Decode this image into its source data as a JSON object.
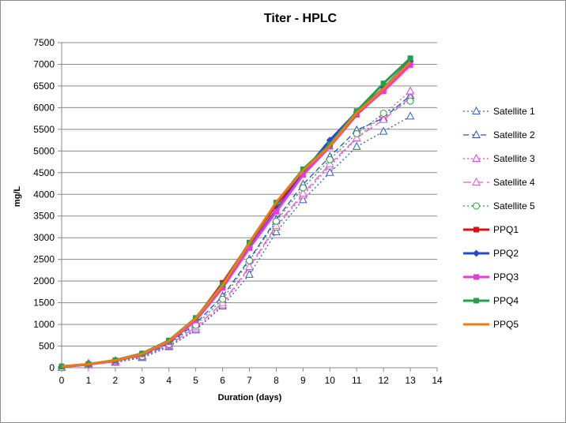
{
  "chart_data": {
    "type": "line",
    "title": "Titer - HPLC",
    "xlabel": "Duration (days)",
    "ylabel": "mg/L",
    "xlim": [
      0,
      14
    ],
    "ylim": [
      0,
      7500
    ],
    "x_ticks": [
      0,
      1,
      2,
      3,
      4,
      5,
      6,
      7,
      8,
      9,
      10,
      11,
      12,
      13,
      14
    ],
    "y_ticks": [
      0,
      500,
      1000,
      1500,
      2000,
      2500,
      3000,
      3500,
      4000,
      4500,
      5000,
      5500,
      6000,
      6500,
      7000,
      7500
    ],
    "grid": true,
    "legend_position": "right",
    "x": [
      0,
      1,
      2,
      3,
      4,
      5,
      6,
      7,
      8,
      9,
      10,
      11,
      12,
      13
    ],
    "series": [
      {
        "name": "Satellite 1",
        "color": "#2f5fc4",
        "dash": "dot",
        "marker": "triangle-open",
        "width": 1.3,
        "values": [
          0,
          100,
          120,
          230,
          480,
          870,
          1420,
          2150,
          3130,
          3870,
          4500,
          5100,
          5450,
          5800
        ]
      },
      {
        "name": "Satellite 2",
        "color": "#2f4fb4",
        "dash": "dash",
        "marker": "triangle-open",
        "width": 1.3,
        "values": [
          0,
          70,
          160,
          280,
          560,
          1020,
          1650,
          2500,
          3420,
          4230,
          4870,
          5480,
          5760,
          6280
        ]
      },
      {
        "name": "Satellite 3",
        "color": "#e040d8",
        "dash": "dot",
        "marker": "triangle-open",
        "width": 1.3,
        "values": [
          0,
          90,
          130,
          250,
          500,
          900,
          1450,
          2300,
          3240,
          3980,
          4650,
          5290,
          5840,
          6380
        ]
      },
      {
        "name": "Satellite 4",
        "color": "#e35ad6",
        "dash": "longdash",
        "marker": "triangle-open",
        "width": 1.3,
        "values": [
          0,
          60,
          150,
          270,
          520,
          940,
          1500,
          2330,
          3280,
          4020,
          4700,
          5300,
          5720,
          6230
        ]
      },
      {
        "name": "Satellite 5",
        "color": "#2aa040",
        "dash": "dot",
        "marker": "circle-open",
        "width": 1.3,
        "values": [
          0,
          80,
          140,
          260,
          540,
          980,
          1580,
          2470,
          3380,
          4150,
          4800,
          5400,
          5870,
          6150
        ]
      },
      {
        "name": "PPQ1",
        "color": "#e01010",
        "dash": "solid",
        "marker": "square",
        "width": 3,
        "values": [
          30,
          80,
          160,
          310,
          610,
          1130,
          1960,
          2870,
          3760,
          4520,
          5100,
          5840,
          6400,
          7030
        ]
      },
      {
        "name": "PPQ2",
        "color": "#2a48c8",
        "dash": "solid",
        "marker": "diamond",
        "width": 3,
        "values": [
          30,
          80,
          170,
          320,
          620,
          1120,
          1860,
          2780,
          3640,
          4500,
          5250,
          5900,
          6450,
          7080
        ]
      },
      {
        "name": "PPQ3",
        "color": "#e838e0",
        "dash": "solid",
        "marker": "square",
        "width": 3,
        "values": [
          30,
          75,
          160,
          310,
          590,
          1090,
          1840,
          2760,
          3600,
          4450,
          5100,
          5860,
          6380,
          6980
        ]
      },
      {
        "name": "PPQ4",
        "color": "#22a04a",
        "dash": "solid",
        "marker": "square",
        "width": 3,
        "values": [
          30,
          85,
          175,
          330,
          630,
          1150,
          1920,
          2890,
          3810,
          4580,
          5150,
          5920,
          6560,
          7140
        ]
      },
      {
        "name": "PPQ5",
        "color": "#f07a10",
        "dash": "solid",
        "marker": "none",
        "width": 3,
        "values": [
          30,
          85,
          170,
          320,
          620,
          1140,
          1900,
          2880,
          3820,
          4550,
          5120,
          5880,
          6440,
          7060
        ]
      }
    ]
  }
}
